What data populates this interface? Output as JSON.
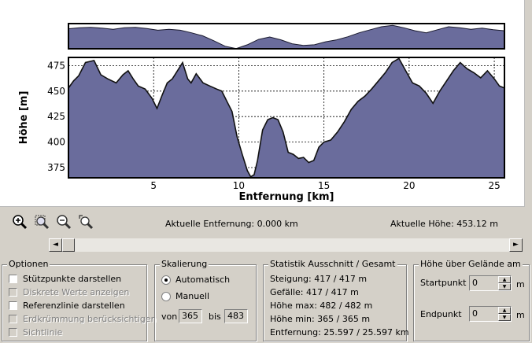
{
  "chart_data": {
    "type": "area",
    "xlabel": "Entfernung [km]",
    "ylabel": "Höhe [m]",
    "xlim": [
      0,
      25.597
    ],
    "ylim": [
      365,
      483
    ],
    "xticks": [
      5,
      10,
      15,
      20,
      25
    ],
    "yticks": [
      375,
      400,
      425,
      450,
      475
    ],
    "grid": true,
    "fill_color": "#6a6c9c",
    "x": [
      0,
      0.3,
      0.6,
      1.0,
      1.5,
      1.9,
      2.3,
      2.8,
      3.2,
      3.5,
      3.8,
      4.1,
      4.5,
      4.9,
      5.2,
      5.5,
      5.8,
      6.1,
      6.4,
      6.7,
      7.0,
      7.2,
      7.5,
      7.9,
      8.3,
      8.7,
      9.0,
      9.3,
      9.6,
      9.9,
      10.2,
      10.5,
      10.7,
      10.9,
      11.1,
      11.4,
      11.7,
      12.0,
      12.3,
      12.6,
      12.9,
      13.2,
      13.5,
      13.8,
      14.1,
      14.4,
      14.7,
      15.0,
      15.4,
      15.8,
      16.2,
      16.6,
      17.0,
      17.4,
      17.8,
      18.2,
      18.6,
      19.0,
      19.4,
      19.8,
      20.2,
      20.6,
      21.0,
      21.4,
      21.8,
      22.2,
      22.6,
      23.0,
      23.4,
      23.8,
      24.2,
      24.6,
      25.0,
      25.3,
      25.597
    ],
    "y": [
      453,
      460,
      465,
      478,
      480,
      466,
      462,
      458,
      466,
      470,
      462,
      455,
      452,
      443,
      433,
      446,
      458,
      462,
      470,
      478,
      462,
      458,
      467,
      458,
      455,
      452,
      450,
      440,
      430,
      405,
      388,
      372,
      366,
      368,
      382,
      412,
      422,
      424,
      422,
      410,
      390,
      388,
      384,
      385,
      380,
      382,
      395,
      400,
      402,
      410,
      420,
      432,
      440,
      445,
      452,
      460,
      468,
      478,
      482,
      470,
      458,
      455,
      448,
      438,
      450,
      460,
      470,
      478,
      472,
      468,
      463,
      470,
      462,
      455,
      453
    ]
  },
  "overview": {
    "y": [
      465,
      470,
      472,
      468,
      462,
      470,
      472,
      466,
      458,
      462,
      458,
      445,
      430,
      405,
      378,
      366,
      385,
      412,
      424,
      410,
      390,
      382,
      385,
      400,
      410,
      425,
      445,
      460,
      475,
      482,
      470,
      455,
      445,
      460,
      475,
      470,
      462,
      468,
      460,
      455
    ]
  },
  "toolbar": {
    "icons": [
      "zoom-in-icon",
      "zoom-area-icon",
      "zoom-out-icon",
      "zoom-reset-icon"
    ],
    "distance_label": "Aktuelle Entfernung: 0.000 km",
    "height_label": "Aktuelle Höhe: 453.12 m"
  },
  "scrollbar": {
    "left_arrow": "◄",
    "right_arrow": "►"
  },
  "options": {
    "title": "Optionen",
    "items": [
      {
        "label": "Stützpunkte darstellen",
        "checked": false,
        "enabled": true
      },
      {
        "label": "Diskrete Werte anzeigen",
        "checked": false,
        "enabled": false
      },
      {
        "label": "Referenzlinie darstellen",
        "checked": false,
        "enabled": true
      },
      {
        "label": "Erdkrümmung berücksichtigen",
        "checked": false,
        "enabled": false
      },
      {
        "label": "Sichtlinie",
        "checked": false,
        "enabled": false
      }
    ]
  },
  "scaling": {
    "title": "Skalierung",
    "auto_label": "Automatisch",
    "manual_label": "Manuell",
    "selected": "Automatisch",
    "from_label": "von",
    "from_value": "365",
    "to_label": "bis",
    "to_value": "483"
  },
  "stats": {
    "title": "Statistik  Ausschnitt / Gesamt",
    "lines": [
      "Steigung: 417 / 417 m",
      "Gefälle: 417 / 417 m",
      "Höhe max: 482 / 482 m",
      "Höhe min: 365 / 365 m",
      "Entfernung: 25.597 / 25.597 km"
    ]
  },
  "terrain": {
    "title": "Höhe über Gelände am",
    "start_label": "Startpunkt",
    "start_value": "0",
    "end_label": "Endpunkt",
    "end_value": "0",
    "unit": "m"
  }
}
